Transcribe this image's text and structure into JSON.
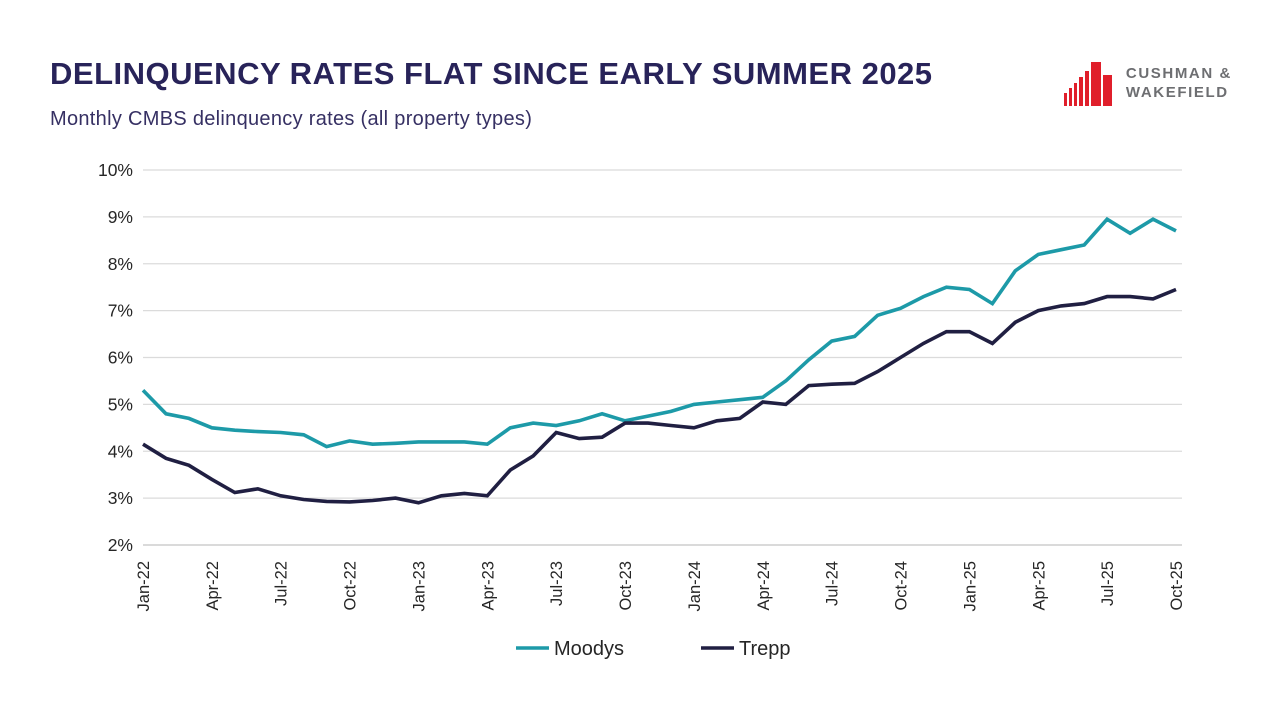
{
  "header": {
    "title": "DELINQUENCY RATES FLAT SINCE EARLY SUMMER 2025",
    "subtitle": "Monthly CMBS delinquency rates (all property types)"
  },
  "logo": {
    "name": "cushman-wakefield-logo",
    "line1": "CUSHMAN &",
    "line2": "WAKEFIELD",
    "icon_color": "#E01F2B",
    "text_color": "#6D6E71"
  },
  "chart_data": {
    "type": "line",
    "title": "Monthly CMBS delinquency rates (all property types)",
    "categories": [
      "Jan-22",
      "Feb-22",
      "Mar-22",
      "Apr-22",
      "May-22",
      "Jun-22",
      "Jul-22",
      "Aug-22",
      "Sep-22",
      "Oct-22",
      "Nov-22",
      "Dec-22",
      "Jan-23",
      "Feb-23",
      "Mar-23",
      "Apr-23",
      "May-23",
      "Jun-23",
      "Jul-23",
      "Aug-23",
      "Sep-23",
      "Oct-23",
      "Nov-23",
      "Dec-23",
      "Jan-24",
      "Feb-24",
      "Mar-24",
      "Apr-24",
      "May-24",
      "Jun-24",
      "Jul-24",
      "Aug-24",
      "Sep-24",
      "Oct-24",
      "Nov-24",
      "Dec-24",
      "Jan-25",
      "Feb-25",
      "Mar-25",
      "Apr-25",
      "May-25",
      "Jun-25",
      "Jul-25",
      "Aug-25",
      "Sep-25",
      "Oct-25"
    ],
    "series": [
      {
        "name": "Moodys",
        "color": "#1D9AA8",
        "values": [
          5.3,
          4.8,
          4.7,
          4.5,
          4.45,
          4.42,
          4.4,
          4.35,
          4.1,
          4.22,
          4.15,
          4.17,
          4.2,
          4.2,
          4.2,
          4.15,
          4.5,
          4.6,
          4.55,
          4.65,
          4.8,
          4.65,
          4.75,
          4.85,
          5.0,
          5.05,
          5.1,
          5.15,
          5.5,
          5.95,
          6.35,
          6.45,
          6.9,
          7.05,
          7.3,
          7.5,
          7.45,
          7.15,
          7.85,
          8.2,
          8.3,
          8.4,
          8.95,
          8.65,
          8.95,
          8.7
        ]
      },
      {
        "name": "Trepp",
        "color": "#201F42",
        "values": [
          4.15,
          3.85,
          3.7,
          3.4,
          3.12,
          3.2,
          3.05,
          2.97,
          2.93,
          2.92,
          2.95,
          3.0,
          2.9,
          3.05,
          3.1,
          3.05,
          3.6,
          3.9,
          4.4,
          4.27,
          4.3,
          4.6,
          4.6,
          4.55,
          4.5,
          4.65,
          4.7,
          5.05,
          5.0,
          5.4,
          5.43,
          5.45,
          5.7,
          6.0,
          6.3,
          6.55,
          6.55,
          6.3,
          6.75,
          7.0,
          7.1,
          7.15,
          7.3,
          7.3,
          7.25,
          7.45
        ]
      }
    ],
    "ylim": [
      2,
      10
    ],
    "ytick_step": 1,
    "ytick_suffix": "%",
    "x_tick_every": 3,
    "grid": "horizontal",
    "gridline_color": "#DBDBDB",
    "axisline_color": "#C4C4C4",
    "tick_label_color": "#262626",
    "legend_position": "bottom-center",
    "legend": [
      "Moodys",
      "Trepp"
    ]
  }
}
